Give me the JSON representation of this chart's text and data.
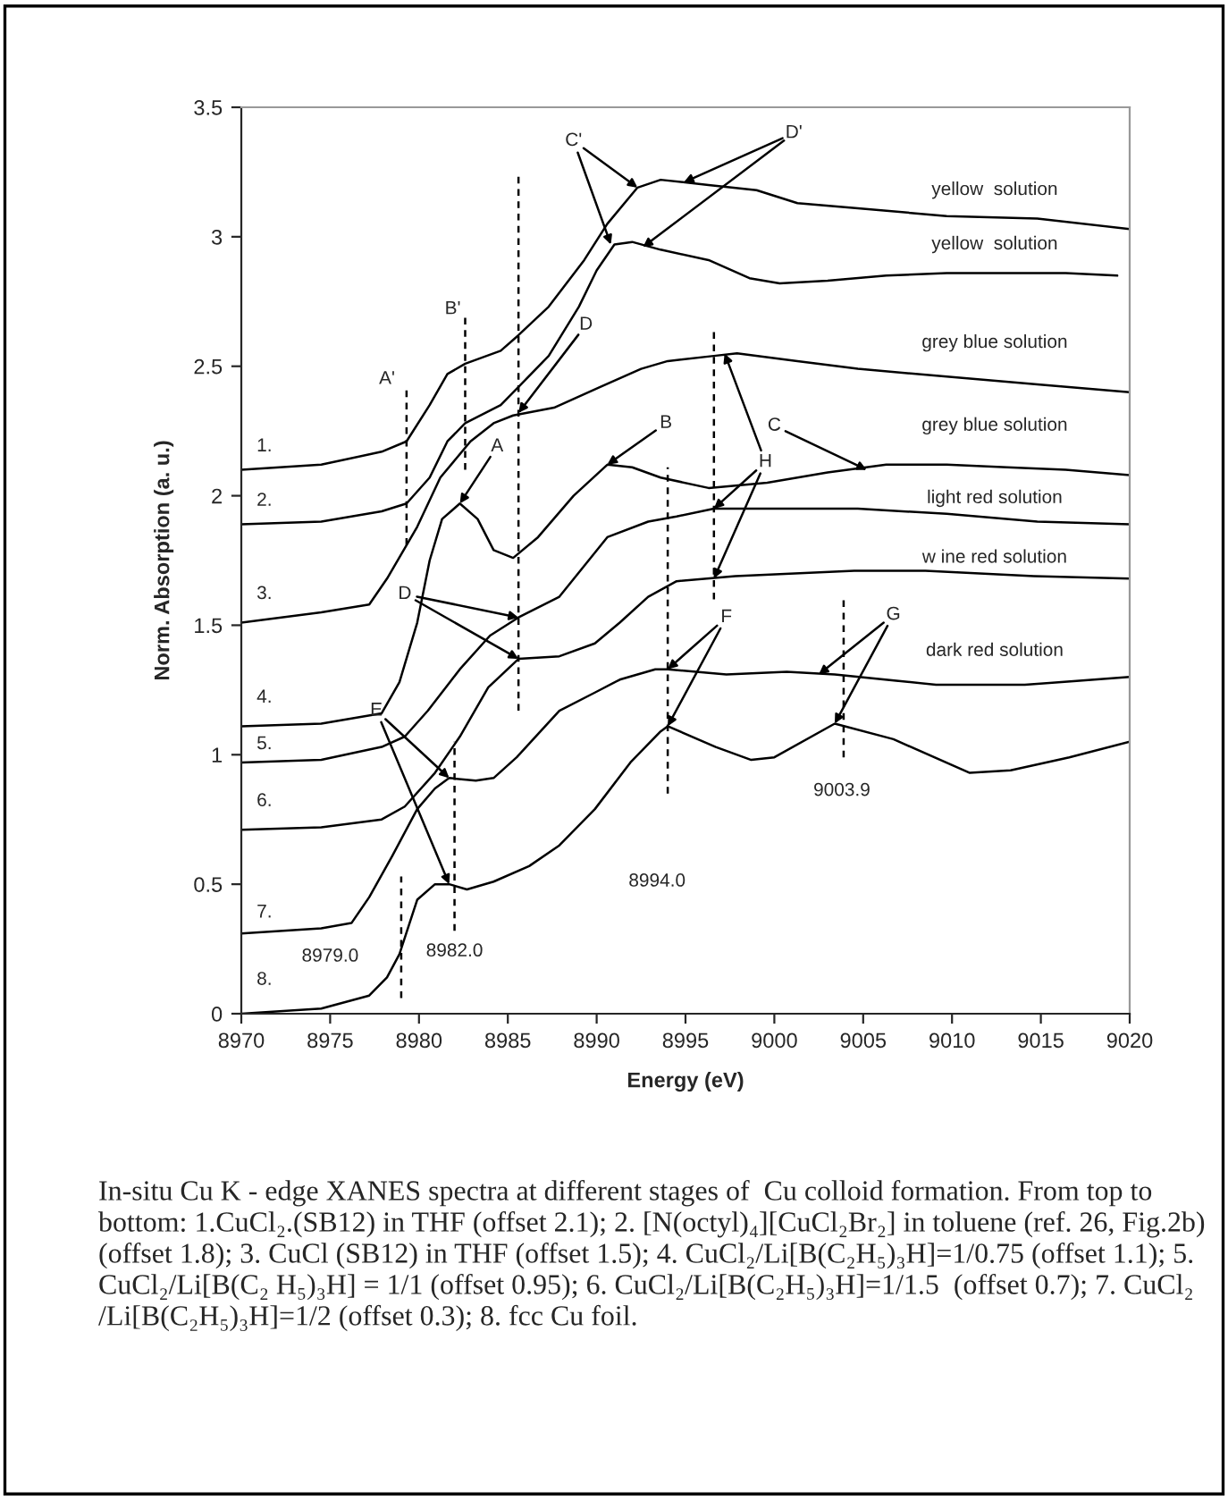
{
  "chart_data": {
    "type": "line",
    "xlabel": "Energy (eV)",
    "ylabel": "Norm. Absorption (a. u.)",
    "xlim": [
      8970,
      9020
    ],
    "xticks": [
      8970,
      8975,
      8980,
      8985,
      8990,
      8995,
      9000,
      9005,
      9010,
      9015,
      9020
    ],
    "ylim": [
      0,
      3.5
    ],
    "yticks": [
      0,
      0.5,
      1,
      1.5,
      2,
      2.5,
      3,
      3.5
    ],
    "grid": false,
    "legend": false,
    "marker": "none",
    "series": [
      {
        "color": "#000000",
        "x": [
          8970,
          8974.5,
          8977.9,
          8979.3,
          8980.6,
          8981.6,
          8982.6,
          8984.6,
          8985.6,
          8987.3,
          8989.3,
          8990.6,
          8992.3,
          8993.6,
          8996.3,
          8999.0,
          9001.3,
          9004.7,
          9009.7,
          9014.8,
          9020
        ],
        "values": [
          2.1,
          2.12,
          2.17,
          2.21,
          2.35,
          2.47,
          2.51,
          2.56,
          2.62,
          2.73,
          2.91,
          3.05,
          3.19,
          3.22,
          3.2,
          3.18,
          3.13,
          3.11,
          3.08,
          3.07,
          3.03
        ]
      },
      {
        "color": "#000000",
        "x": [
          8970,
          8974.5,
          8977.9,
          8979.3,
          8980.6,
          8981.6,
          8982.6,
          8984.6,
          8985.6,
          8987.3,
          8989.0,
          8990.0,
          8991.0,
          8992.0,
          8993.6,
          8996.3,
          8998.6,
          9000.3,
          9003.0,
          9006.3,
          9009.7,
          9013.1,
          9016.4,
          9019.3
        ],
        "values": [
          1.89,
          1.9,
          1.94,
          1.97,
          2.07,
          2.21,
          2.28,
          2.35,
          2.42,
          2.54,
          2.73,
          2.87,
          2.97,
          2.98,
          2.95,
          2.91,
          2.84,
          2.82,
          2.83,
          2.85,
          2.86,
          2.86,
          2.86,
          2.85
        ]
      },
      {
        "color": "#000000",
        "x": [
          8970,
          8974.5,
          8977.2,
          8978.2,
          8979.9,
          8981.2,
          8982.9,
          8984.2,
          8985.3,
          8987.6,
          8990.2,
          8992.5,
          8994.0,
          8996.6,
          8997.9,
          9001.3,
          9004.7,
          9009.7,
          9014.8,
          9020
        ],
        "values": [
          1.51,
          1.55,
          1.58,
          1.68,
          1.88,
          2.07,
          2.21,
          2.28,
          2.31,
          2.34,
          2.42,
          2.49,
          2.52,
          2.54,
          2.55,
          2.52,
          2.49,
          2.46,
          2.43,
          2.4
        ]
      },
      {
        "color": "#000000",
        "x": [
          8970,
          8974.5,
          8977.9,
          8978.9,
          8979.9,
          8980.6,
          8981.3,
          8982.3,
          8983.3,
          8984.2,
          8985.3,
          8986.7,
          8988.7,
          8990.6,
          8992.0,
          8993.6,
          8996.3,
          8999.6,
          9003.0,
          9006.3,
          9009.7,
          9013.1,
          9016.4,
          9020
        ],
        "values": [
          1.11,
          1.12,
          1.16,
          1.28,
          1.51,
          1.75,
          1.91,
          1.97,
          1.91,
          1.79,
          1.76,
          1.84,
          2.0,
          2.12,
          2.11,
          2.07,
          2.03,
          2.05,
          2.09,
          2.12,
          2.12,
          2.11,
          2.1,
          2.08
        ]
      },
      {
        "color": "#000000",
        "x": [
          8970,
          8974.5,
          8977.9,
          8979.2,
          8980.5,
          8982.3,
          8984.0,
          8985.6,
          8987.9,
          8990.6,
          8992.9,
          8994.5,
          8996.6,
          8999.6,
          9004.7,
          9009.7,
          9014.8,
          9020
        ],
        "values": [
          0.97,
          0.98,
          1.03,
          1.07,
          1.17,
          1.33,
          1.46,
          1.53,
          1.61,
          1.84,
          1.9,
          1.92,
          1.95,
          1.95,
          1.95,
          1.93,
          1.9,
          1.89
        ]
      },
      {
        "color": "#000000",
        "x": [
          8970,
          8974.5,
          8977.9,
          8979.2,
          8980.9,
          8982.3,
          8983.9,
          8985.6,
          8987.9,
          8989.9,
          8991.3,
          8992.9,
          8994.5,
          8997.8,
          9004.5,
          9008.5,
          9014.6,
          9020
        ],
        "values": [
          0.71,
          0.72,
          0.75,
          0.8,
          0.93,
          1.07,
          1.26,
          1.37,
          1.38,
          1.43,
          1.51,
          1.61,
          1.67,
          1.69,
          1.71,
          1.71,
          1.69,
          1.68
        ]
      },
      {
        "color": "#000000",
        "x": [
          8970,
          8974.5,
          8976.2,
          8977.2,
          8978.5,
          8979.9,
          8980.9,
          8981.7,
          8983.2,
          8984.2,
          8985.5,
          8987.9,
          8989.9,
          8991.3,
          8993.3,
          8994.0,
          8997.3,
          9000.7,
          9003.4,
          9009.1,
          9014.1,
          9020
        ],
        "values": [
          0.31,
          0.33,
          0.35,
          0.45,
          0.61,
          0.79,
          0.87,
          0.91,
          0.9,
          0.91,
          0.99,
          1.17,
          1.24,
          1.29,
          1.33,
          1.33,
          1.31,
          1.32,
          1.31,
          1.27,
          1.27,
          1.3
        ]
      },
      {
        "color": "#000000",
        "x": [
          8970,
          8974.5,
          8977.2,
          8978.2,
          8978.9,
          8979.9,
          8980.9,
          8981.7,
          8982.7,
          8984.2,
          8986.2,
          8987.9,
          8989.9,
          8991.9,
          8993.6,
          8994.0,
          8996.7,
          8998.7,
          9000.0,
          9003.4,
          9006.7,
          9011.0,
          9013.3,
          9016.6,
          9020
        ],
        "values": [
          0.0,
          0.02,
          0.07,
          0.14,
          0.23,
          0.44,
          0.5,
          0.5,
          0.48,
          0.51,
          0.57,
          0.65,
          0.79,
          0.97,
          1.09,
          1.11,
          1.03,
          0.98,
          0.99,
          1.12,
          1.06,
          0.93,
          0.94,
          0.99,
          1.05
        ]
      },
      {
        "color": "#000000",
        "line_style": "dashed",
        "x": [
          8979.3,
          8979.3
        ],
        "values": [
          1.81,
          2.42
        ]
      },
      {
        "color": "#000000",
        "line_style": "dashed",
        "x": [
          8982.6,
          8982.6
        ],
        "values": [
          2.1,
          2.7
        ]
      },
      {
        "color": "#000000",
        "line_style": "dashed",
        "x": [
          8985.6,
          8985.6
        ],
        "values": [
          1.17,
          3.25
        ]
      },
      {
        "color": "#000000",
        "line_style": "dashed",
        "x": [
          8996.6,
          8996.6
        ],
        "values": [
          1.6,
          2.64
        ]
      },
      {
        "color": "#000000",
        "line_style": "dashed",
        "x": [
          8994.0,
          8994.0
        ],
        "values": [
          0.85,
          2.11
        ]
      },
      {
        "color": "#000000",
        "line_style": "dashed",
        "x": [
          9003.9,
          9003.9
        ],
        "values": [
          0.99,
          1.61
        ]
      },
      {
        "color": "#000000",
        "line_style": "dashed",
        "x": [
          8982.0,
          8982.0
        ],
        "values": [
          0.32,
          1.05
        ]
      },
      {
        "color": "#000000",
        "line_style": "dashed",
        "x": [
          8979.0,
          8979.0
        ],
        "values": [
          0.06,
          0.53
        ]
      }
    ],
    "annotations": [
      "1.",
      "2.",
      "3.",
      "4.",
      "5.",
      "6.",
      "7.",
      "8.",
      "yellow  solution",
      "yellow  solution",
      "grey blue solution",
      "grey blue solution",
      "light red solution",
      "w ine red solution",
      "dark red solution",
      "A'",
      "B'",
      {
        "text": "C'",
        "x": 8992.3,
        "y": 3.19
      },
      {
        "text": "D'",
        "x": 8994.9,
        "y": 3.21
      },
      {
        "text": "D",
        "x": 8985.6,
        "y": 2.32
      },
      {
        "text": "A",
        "x": 8982.3,
        "y": 1.97
      },
      {
        "text": "B",
        "x": 8990.6,
        "y": 2.12
      },
      {
        "text": "C",
        "x": 9005.2,
        "y": 2.1
      },
      {
        "text": "H",
        "x": 8996.6,
        "y": 1.95
      },
      {
        "text": "D",
        "x": 8985.6,
        "y": 1.53
      },
      {
        "text": "E",
        "x": 8981.7,
        "y": 0.91
      },
      {
        "text": "F",
        "x": 8994.0,
        "y": 1.33
      },
      {
        "text": "G",
        "x": 9003.4,
        "y": 1.12
      },
      "8979.0",
      "8982.0",
      "8994.0",
      "9003.9",
      "In-situ Cu K - edge XANES spectra at different stages of  Cu colloid formation. From top to bottom: 1.CuCl₂.(SB12) in THF (offset 2.1); 2. [N(octyl)₄][CuCl₂Br₂] in toluene (ref. 26, Fig.2b) (offset 1.8); 3. CuCl (SB12) in THF (offset 1.5); 4. CuCl₂/Li[B(C₂H₅)₃H]=1/0.75 (offset 1.1); 5. CuCl₂/Li[B(C₂ H₅)₃H] = 1/1 (offset 0.95); 6. CuCl₂/Li[B(C₂H₅)₃H]=1/1.5  (offset 0.7); 7. CuCl₂ /Li[B(C₂H₅)₃H]=1/2 (offset 0.3); 8. fcc Cu foil."
    ]
  }
}
